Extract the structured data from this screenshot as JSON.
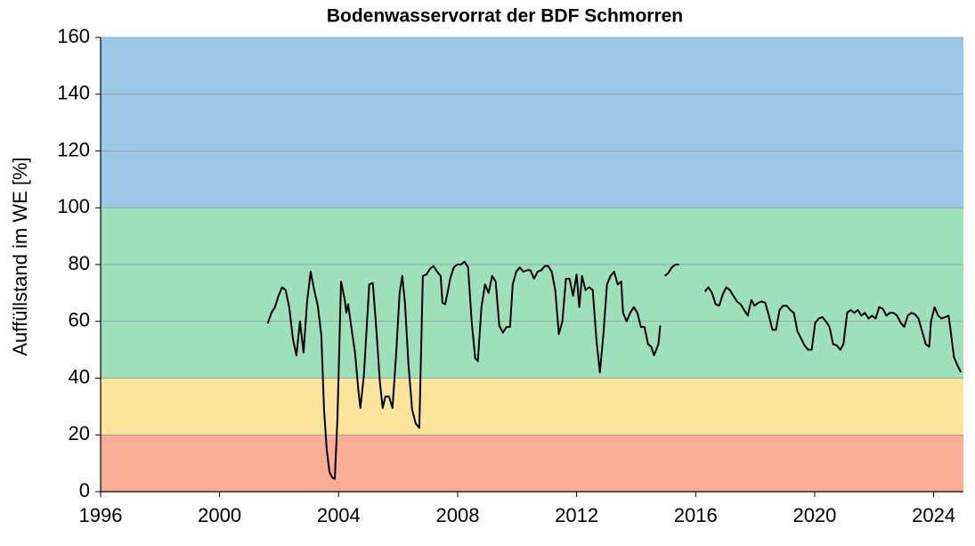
{
  "chart_data": {
    "type": "line",
    "title": "Bodenwasservorrat der BDF Schmorren",
    "y_label": "Auffüllstand im WE [%]",
    "xlim": [
      1996,
      2025
    ],
    "xticks": [
      1996,
      2000,
      2004,
      2008,
      2012,
      2016,
      2020,
      2024
    ],
    "ylim": [
      0,
      160
    ],
    "yticks": [
      0,
      20,
      40,
      60,
      80,
      100,
      120,
      140,
      160
    ],
    "grid": true,
    "bands": [
      {
        "from": 0,
        "to": 20,
        "color": "#f9ae96"
      },
      {
        "from": 20,
        "to": 40,
        "color": "#fce49a"
      },
      {
        "from": 40,
        "to": 100,
        "color": "#9ee0bc"
      },
      {
        "from": 100,
        "to": 160,
        "color": "#9cc7e6"
      }
    ],
    "x": [
      2001.62,
      2001.74,
      2001.86,
      2001.98,
      2002.1,
      2002.22,
      2002.34,
      2002.46,
      2002.58,
      2002.7,
      2002.82,
      2002.94,
      2003.06,
      2003.18,
      2003.3,
      2003.42,
      2003.51,
      2003.6,
      2003.69,
      2003.78,
      2003.87,
      2003.96,
      2004.08,
      2004.2,
      2004.26,
      2004.32,
      2004.44,
      2004.55,
      2004.67,
      2004.73,
      2004.85,
      2004.94,
      2005.03,
      2005.15,
      2005.27,
      2005.39,
      2005.48,
      2005.57,
      2005.69,
      2005.81,
      2005.93,
      2006.05,
      2006.14,
      2006.23,
      2006.35,
      2006.47,
      2006.59,
      2006.71,
      2006.83,
      2006.95,
      2007.07,
      2007.19,
      2007.31,
      2007.43,
      2007.49,
      2007.58,
      2007.66,
      2007.75,
      2007.87,
      2007.99,
      2008.11,
      2008.23,
      2008.35,
      2008.47,
      2008.59,
      2008.68,
      2008.8,
      2008.92,
      2009.04,
      2009.16,
      2009.28,
      2009.4,
      2009.52,
      2009.64,
      2009.76,
      2009.85,
      2009.97,
      2010.09,
      2010.21,
      2010.33,
      2010.45,
      2010.57,
      2010.69,
      2010.81,
      2010.93,
      2011.04,
      2011.16,
      2011.28,
      2011.4,
      2011.52,
      2011.64,
      2011.76,
      2011.88,
      2012.0,
      2012.09,
      2012.18,
      2012.3,
      2012.42,
      2012.54,
      2012.66,
      2012.78,
      2012.9,
      2013.02,
      2013.14,
      2013.26,
      2013.38,
      2013.5,
      2013.56,
      2013.68,
      2013.8,
      2013.92,
      2014.04,
      2014.16,
      2014.28,
      2014.4,
      2014.51,
      2014.6,
      2014.75,
      2014.81,
      2014.9,
      2014.96,
      2015.08,
      2015.2,
      2015.32,
      2015.44,
      2015.9,
      2016.31,
      2016.43,
      2016.55,
      2016.67,
      2016.79,
      2016.91,
      2017.03,
      2017.15,
      2017.27,
      2017.39,
      2017.51,
      2017.63,
      2017.75,
      2017.87,
      2017.98,
      2018.1,
      2018.22,
      2018.34,
      2018.46,
      2018.58,
      2018.7,
      2018.82,
      2018.94,
      2019.06,
      2019.18,
      2019.3,
      2019.42,
      2019.54,
      2019.66,
      2019.78,
      2019.9,
      2020.02,
      2020.14,
      2020.26,
      2020.38,
      2020.5,
      2020.62,
      2020.74,
      2020.86,
      2020.97,
      2021.09,
      2021.21,
      2021.33,
      2021.45,
      2021.57,
      2021.69,
      2021.81,
      2021.93,
      2022.05,
      2022.17,
      2022.29,
      2022.41,
      2022.53,
      2022.65,
      2022.77,
      2022.89,
      2023.01,
      2023.13,
      2023.25,
      2023.37,
      2023.49,
      2023.61,
      2023.73,
      2023.85,
      2023.91,
      2024.03,
      2024.15,
      2024.27,
      2024.39,
      2024.5,
      2024.56,
      2024.68,
      2024.8,
      2024.92
    ],
    "series": [
      {
        "name": "Auffüllstand",
        "color": "#000000",
        "values": [
          59.3,
          63,
          65,
          69,
          72,
          71,
          65,
          54,
          48,
          60,
          49,
          67,
          77.5,
          71,
          65.5,
          55,
          29,
          15,
          7,
          5,
          4.5,
          26,
          74,
          68,
          63,
          66,
          57,
          49,
          35,
          29.5,
          41,
          57,
          73,
          73.5,
          57,
          38,
          29.5,
          33.5,
          33.5,
          29.5,
          48,
          70,
          76,
          66.5,
          44.5,
          29,
          24,
          22.5,
          76,
          76.5,
          78.5,
          79.5,
          77.5,
          76,
          66.5,
          66,
          70,
          75,
          79,
          80,
          80,
          81,
          79,
          60,
          47,
          46,
          65,
          73,
          70,
          76,
          74,
          58.5,
          56,
          58,
          58,
          73,
          77.5,
          79,
          77.5,
          78,
          78,
          75,
          77.5,
          78,
          79.5,
          79.5,
          77.5,
          71,
          55.5,
          60,
          75,
          75,
          69,
          76.5,
          65,
          76,
          71,
          72,
          71,
          54,
          42,
          55.5,
          73,
          76,
          77.5,
          73,
          74,
          63,
          60,
          63,
          65,
          63,
          58,
          58,
          52,
          51,
          48,
          52,
          58.5,
          null,
          76,
          77,
          79,
          80,
          80,
          null,
          70.5,
          72,
          70,
          66,
          65.5,
          69.5,
          72,
          71,
          69,
          67,
          66,
          64,
          62,
          67.5,
          65.5,
          66.5,
          67,
          66.5,
          62,
          57,
          57,
          64,
          65.5,
          65.5,
          64,
          63,
          56.5,
          54,
          51.5,
          50,
          50,
          59.5,
          61,
          61.5,
          60,
          58,
          52,
          51.5,
          50,
          52,
          63,
          64,
          63,
          64,
          62,
          63,
          61,
          62,
          61,
          65,
          64.5,
          62,
          63,
          63,
          62,
          59.5,
          58,
          62,
          63,
          62.5,
          61,
          56.5,
          52,
          51,
          60,
          65,
          62,
          61,
          61.5,
          62,
          57.5,
          47.5,
          44.5,
          42
        ]
      }
    ]
  }
}
